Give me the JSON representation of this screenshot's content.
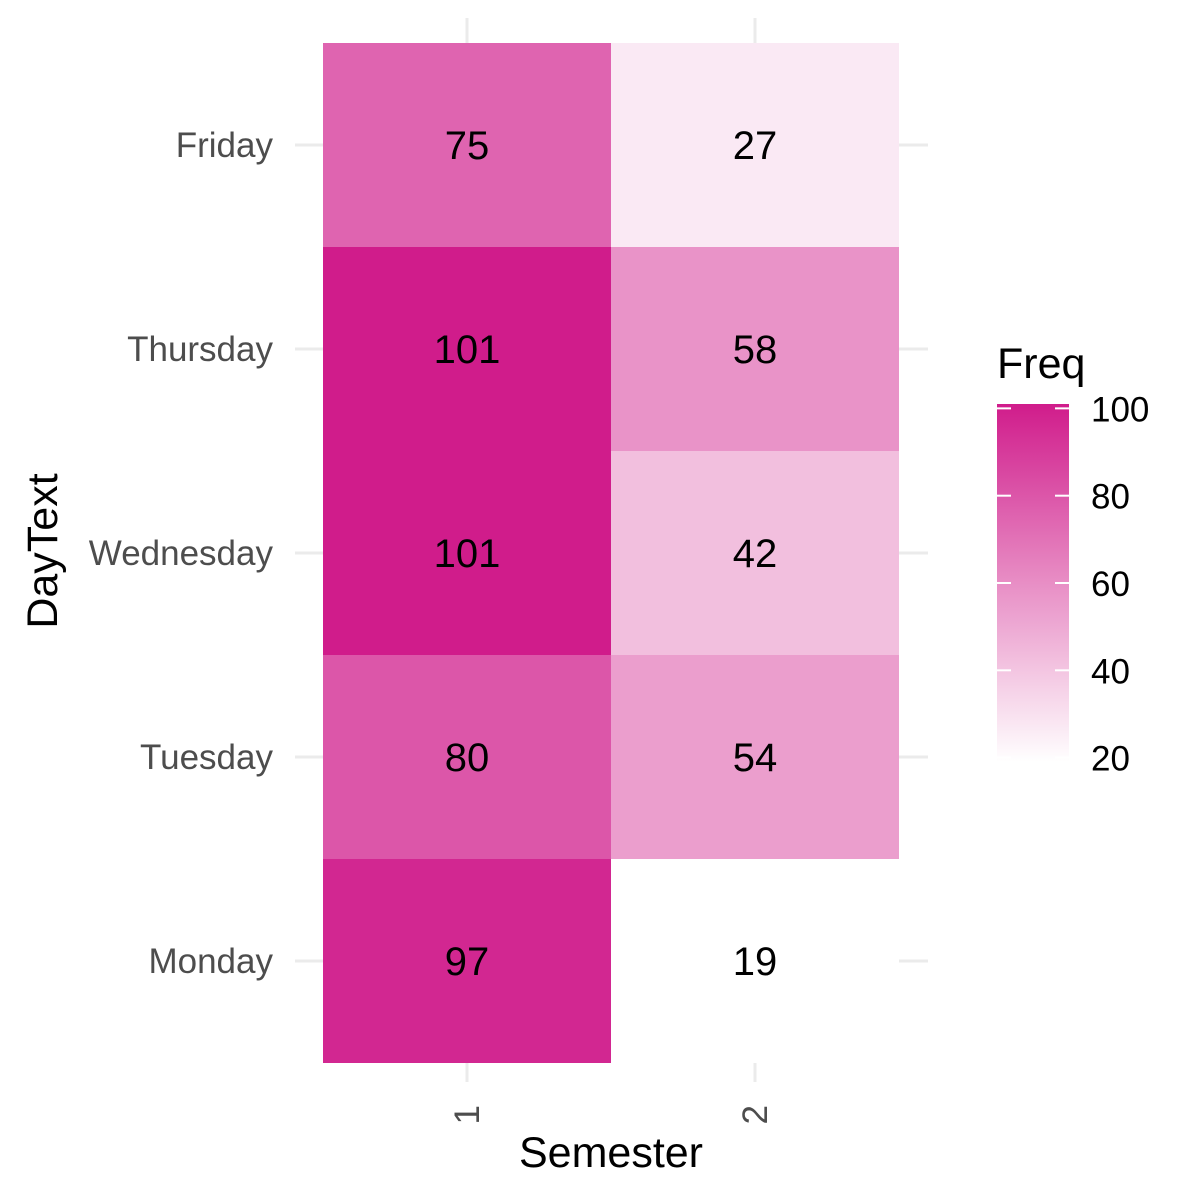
{
  "chart_data": {
    "type": "heatmap",
    "title": "",
    "xlabel": "Semester",
    "ylabel": "DayText",
    "x_categories": [
      "1",
      "2"
    ],
    "y_categories": [
      "Monday",
      "Tuesday",
      "Wednesday",
      "Thursday",
      "Friday"
    ],
    "cells": [
      {
        "x": "1",
        "y": "Friday",
        "value": 75
      },
      {
        "x": "1",
        "y": "Thursday",
        "value": 101
      },
      {
        "x": "1",
        "y": "Wednesday",
        "value": 101
      },
      {
        "x": "1",
        "y": "Tuesday",
        "value": 80
      },
      {
        "x": "1",
        "y": "Monday",
        "value": 97
      },
      {
        "x": "2",
        "y": "Friday",
        "value": 27
      },
      {
        "x": "2",
        "y": "Thursday",
        "value": 58
      },
      {
        "x": "2",
        "y": "Wednesday",
        "value": 42
      },
      {
        "x": "2",
        "y": "Tuesday",
        "value": 54
      },
      {
        "x": "2",
        "y": "Monday",
        "value": 19
      }
    ],
    "color_scale": {
      "low_color": "#ffffff",
      "high_color": "#d01c8b",
      "range": [
        19,
        101
      ]
    },
    "legend": {
      "title": "Freq",
      "ticks": [
        20,
        40,
        60,
        80,
        100
      ],
      "position": "right"
    },
    "grid": true,
    "grid_color": "#ebebeb"
  }
}
